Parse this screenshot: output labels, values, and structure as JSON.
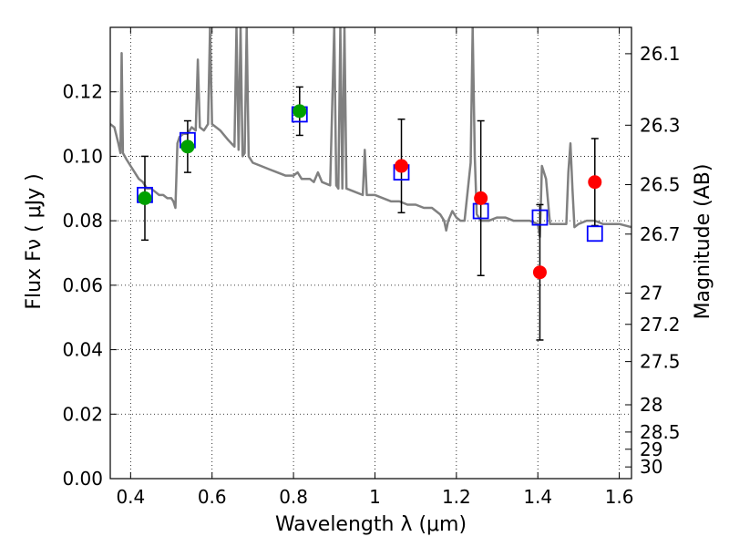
{
  "chart_data": {
    "type": "scatter",
    "xlabel": "Wavelength  λ (μm)",
    "ylabel": "Flux  Fν  ( μJy )",
    "y2label": "Magnitude (AB)",
    "xlim": [
      0.35,
      1.63
    ],
    "ylim": [
      0.0,
      0.14
    ],
    "grid": true,
    "x_ticks": [
      0.4,
      0.6,
      0.8,
      1.0,
      1.2,
      1.4,
      1.6
    ],
    "x_tick_labels": [
      "0.4",
      "0.6",
      "0.8",
      "1",
      "1.2",
      "1.4",
      "1.6"
    ],
    "y_ticks": [
      0.0,
      0.02,
      0.04,
      0.06,
      0.08,
      0.1,
      0.12
    ],
    "y_tick_labels": [
      "0.00",
      "0.02",
      "0.04",
      "0.06",
      "0.08",
      "0.10",
      "0.12"
    ],
    "y2_ticks": [
      {
        "mag": 26.1,
        "label": "26.1"
      },
      {
        "mag": 26.3,
        "label": "26.3"
      },
      {
        "mag": 26.5,
        "label": "26.5"
      },
      {
        "mag": 26.7,
        "label": "26.7"
      },
      {
        "mag": 27.0,
        "label": "27"
      },
      {
        "mag": 27.2,
        "label": "27.2"
      },
      {
        "mag": 27.5,
        "label": "27.5"
      },
      {
        "mag": 28.0,
        "label": "28"
      },
      {
        "mag": 28.5,
        "label": "28.5"
      },
      {
        "mag": 29.0,
        "label": "29"
      },
      {
        "mag": 30.0,
        "label": "30"
      }
    ],
    "series": [
      {
        "kind": "line",
        "color": "#808080",
        "points": [
          [
            0.35,
            0.11
          ],
          [
            0.36,
            0.109
          ],
          [
            0.37,
            0.104
          ],
          [
            0.375,
            0.101
          ],
          [
            0.378,
            0.132
          ],
          [
            0.381,
            0.101
          ],
          [
            0.39,
            0.099
          ],
          [
            0.4,
            0.097
          ],
          [
            0.41,
            0.095
          ],
          [
            0.42,
            0.093
          ],
          [
            0.43,
            0.092
          ],
          [
            0.44,
            0.09
          ],
          [
            0.45,
            0.09
          ],
          [
            0.46,
            0.089
          ],
          [
            0.47,
            0.088
          ],
          [
            0.48,
            0.088
          ],
          [
            0.49,
            0.087
          ],
          [
            0.5,
            0.087
          ],
          [
            0.505,
            0.086
          ],
          [
            0.51,
            0.084
          ],
          [
            0.515,
            0.104
          ],
          [
            0.52,
            0.106
          ],
          [
            0.53,
            0.107
          ],
          [
            0.54,
            0.107
          ],
          [
            0.55,
            0.109
          ],
          [
            0.56,
            0.108
          ],
          [
            0.565,
            0.13
          ],
          [
            0.57,
            0.109
          ],
          [
            0.58,
            0.108
          ],
          [
            0.59,
            0.11
          ],
          [
            0.595,
            0.14
          ],
          [
            0.6,
            0.11
          ],
          [
            0.62,
            0.108
          ],
          [
            0.64,
            0.105
          ],
          [
            0.655,
            0.103
          ],
          [
            0.66,
            0.14
          ],
          [
            0.665,
            0.102
          ],
          [
            0.67,
            0.14
          ],
          [
            0.675,
            0.1
          ],
          [
            0.68,
            0.101
          ],
          [
            0.685,
            0.14
          ],
          [
            0.69,
            0.1
          ],
          [
            0.7,
            0.098
          ],
          [
            0.72,
            0.097
          ],
          [
            0.74,
            0.096
          ],
          [
            0.76,
            0.095
          ],
          [
            0.78,
            0.094
          ],
          [
            0.8,
            0.094
          ],
          [
            0.81,
            0.095
          ],
          [
            0.82,
            0.093
          ],
          [
            0.84,
            0.093
          ],
          [
            0.85,
            0.092
          ],
          [
            0.86,
            0.095
          ],
          [
            0.87,
            0.092
          ],
          [
            0.89,
            0.091
          ],
          [
            0.9,
            0.14
          ],
          [
            0.905,
            0.091
          ],
          [
            0.91,
            0.09
          ],
          [
            0.915,
            0.14
          ],
          [
            0.92,
            0.09
          ],
          [
            0.925,
            0.14
          ],
          [
            0.93,
            0.09
          ],
          [
            0.95,
            0.089
          ],
          [
            0.97,
            0.088
          ],
          [
            0.975,
            0.102
          ],
          [
            0.98,
            0.088
          ],
          [
            1.0,
            0.088
          ],
          [
            1.02,
            0.087
          ],
          [
            1.04,
            0.086
          ],
          [
            1.06,
            0.086
          ],
          [
            1.08,
            0.085
          ],
          [
            1.1,
            0.085
          ],
          [
            1.12,
            0.084
          ],
          [
            1.14,
            0.084
          ],
          [
            1.16,
            0.082
          ],
          [
            1.17,
            0.08
          ],
          [
            1.175,
            0.077
          ],
          [
            1.18,
            0.08
          ],
          [
            1.19,
            0.083
          ],
          [
            1.2,
            0.081
          ],
          [
            1.21,
            0.08
          ],
          [
            1.22,
            0.08
          ],
          [
            1.235,
            0.098
          ],
          [
            1.24,
            0.14
          ],
          [
            1.245,
            0.1
          ],
          [
            1.25,
            0.082
          ],
          [
            1.26,
            0.08
          ],
          [
            1.28,
            0.08
          ],
          [
            1.3,
            0.081
          ],
          [
            1.32,
            0.081
          ],
          [
            1.34,
            0.08
          ],
          [
            1.36,
            0.08
          ],
          [
            1.38,
            0.08
          ],
          [
            1.4,
            0.079
          ],
          [
            1.405,
            0.075
          ],
          [
            1.41,
            0.097
          ],
          [
            1.42,
            0.093
          ],
          [
            1.43,
            0.079
          ],
          [
            1.45,
            0.079
          ],
          [
            1.47,
            0.079
          ],
          [
            1.475,
            0.095
          ],
          [
            1.48,
            0.104
          ],
          [
            1.485,
            0.09
          ],
          [
            1.49,
            0.078
          ],
          [
            1.5,
            0.079
          ],
          [
            1.52,
            0.08
          ],
          [
            1.54,
            0.08
          ],
          [
            1.56,
            0.079
          ],
          [
            1.58,
            0.079
          ],
          [
            1.6,
            0.079
          ],
          [
            1.63,
            0.078
          ]
        ]
      },
      {
        "kind": "markers",
        "marker": "square-open",
        "color": "#0000ff",
        "x": [
          0.435,
          0.54,
          0.815,
          1.065,
          1.26,
          1.405,
          1.54
        ],
        "y": [
          0.088,
          0.105,
          0.113,
          0.095,
          0.083,
          0.081,
          0.076
        ]
      },
      {
        "kind": "markers",
        "marker": "circle",
        "color": "#00a000",
        "x": [
          0.435,
          0.54,
          0.815
        ],
        "y": [
          0.087,
          0.103,
          0.114
        ],
        "yerr": [
          0.013,
          0.008,
          0.0075
        ]
      },
      {
        "kind": "markers",
        "marker": "circle",
        "color": "#ff0000",
        "x": [
          1.065,
          1.26,
          1.405,
          1.54
        ],
        "y": [
          0.097,
          0.087,
          0.064,
          0.092
        ],
        "yerr": [
          0.0145,
          0.024,
          0.021,
          0.0135
        ]
      }
    ]
  }
}
